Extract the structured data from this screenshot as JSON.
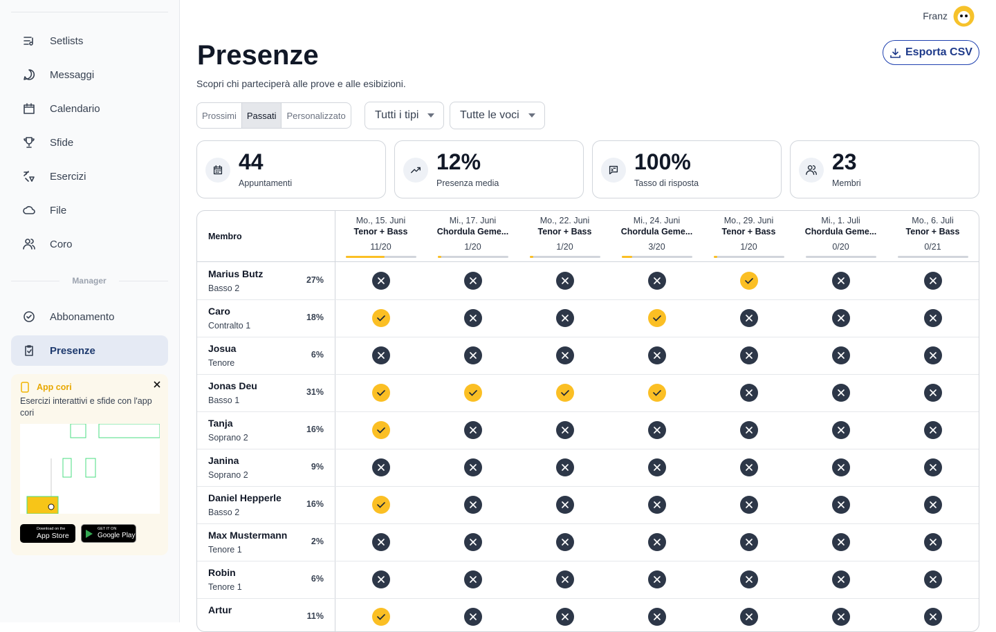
{
  "user": {
    "name": "Franz"
  },
  "sidebar": {
    "nav": [
      "Setlists",
      "Messaggi",
      "Calendario",
      "Sfide",
      "Esercizi",
      "File",
      "Coro"
    ],
    "section": "Manager",
    "manager_nav": [
      "Abbonamento",
      "Presenze"
    ],
    "active_manager": 1,
    "app_card": {
      "title": "App cori",
      "text": "Esercizi interattivi e sfide con l'app cori",
      "app_store": {
        "small": "Download on the",
        "big": "App Store"
      },
      "google_play": {
        "small": "GET IT ON",
        "big": "Google Play"
      }
    }
  },
  "header": {
    "title": "Presenze",
    "subtitle": "Scopri chi parteciperà alle prove e alle esibizioni.",
    "export": "Esporta CSV"
  },
  "filters": {
    "tabs": [
      "Prossimi",
      "Passati",
      "Personalizzato"
    ],
    "active_tab": 1,
    "types": "Tutti i tipi",
    "voices": "Tutte le voci"
  },
  "stats": [
    {
      "value": "44",
      "label": "Appuntamenti"
    },
    {
      "value": "12%",
      "label": "Presenza media"
    },
    {
      "value": "100%",
      "label": "Tasso di risposta"
    },
    {
      "value": "23",
      "label": "Membri"
    }
  ],
  "table": {
    "member_header": "Membro",
    "events": [
      {
        "date": "Mo., 15. Juni",
        "name": "Tenor + Bass",
        "count": {
          "value": 11,
          "max": 20,
          "label": "11/20"
        }
      },
      {
        "date": "Mi., 17. Juni",
        "name": "Chordula Geme...",
        "count": {
          "value": 1,
          "max": 20,
          "label": "1/20"
        }
      },
      {
        "date": "Mo., 22. Juni",
        "name": "Tenor + Bass",
        "count": {
          "value": 1,
          "max": 20,
          "label": "1/20"
        }
      },
      {
        "date": "Mi., 24. Juni",
        "name": "Chordula Geme...",
        "count": {
          "value": 3,
          "max": 20,
          "label": "3/20"
        }
      },
      {
        "date": "Mo., 29. Juni",
        "name": "Tenor + Bass",
        "count": {
          "value": 1,
          "max": 20,
          "label": "1/20"
        }
      },
      {
        "date": "Mi., 1. Juli",
        "name": "Chordula Geme...",
        "count": {
          "value": 0,
          "max": 20,
          "label": "0/20"
        }
      },
      {
        "date": "Mo., 6. Juli",
        "name": "Tenor + Bass",
        "count": {
          "value": 0,
          "max": 21,
          "label": "0/21"
        }
      }
    ],
    "rows": [
      {
        "name": "Marius Butz",
        "voice": "Basso 2",
        "rate": "27%",
        "attendance": [
          false,
          false,
          false,
          false,
          true,
          false,
          false
        ]
      },
      {
        "name": "Caro",
        "voice": "Contralto 1",
        "rate": "18%",
        "attendance": [
          true,
          false,
          false,
          true,
          false,
          false,
          false
        ]
      },
      {
        "name": "Josua",
        "voice": "Tenore",
        "rate": "6%",
        "attendance": [
          false,
          false,
          false,
          false,
          false,
          false,
          false
        ]
      },
      {
        "name": "Jonas Deu",
        "voice": "Basso 1",
        "rate": "31%",
        "attendance": [
          true,
          true,
          true,
          true,
          false,
          false,
          false
        ]
      },
      {
        "name": "Tanja",
        "voice": "Soprano 2",
        "rate": "16%",
        "attendance": [
          true,
          false,
          false,
          false,
          false,
          false,
          false
        ]
      },
      {
        "name": "Janina",
        "voice": "Soprano 2",
        "rate": "9%",
        "attendance": [
          false,
          false,
          false,
          false,
          false,
          false,
          false
        ]
      },
      {
        "name": "Daniel Hepperle",
        "voice": "Basso 2",
        "rate": "16%",
        "attendance": [
          true,
          false,
          false,
          false,
          false,
          false,
          false
        ]
      },
      {
        "name": "Max Mustermann",
        "voice": "Tenore 1",
        "rate": "2%",
        "attendance": [
          false,
          false,
          false,
          false,
          false,
          false,
          false
        ]
      },
      {
        "name": "Robin",
        "voice": "Tenore 1",
        "rate": "6%",
        "attendance": [
          false,
          false,
          false,
          false,
          false,
          false,
          false
        ]
      },
      {
        "name": "Artur",
        "rate": "11%",
        "attendance": [
          true,
          false,
          false,
          false,
          false,
          false,
          false
        ]
      }
    ]
  }
}
